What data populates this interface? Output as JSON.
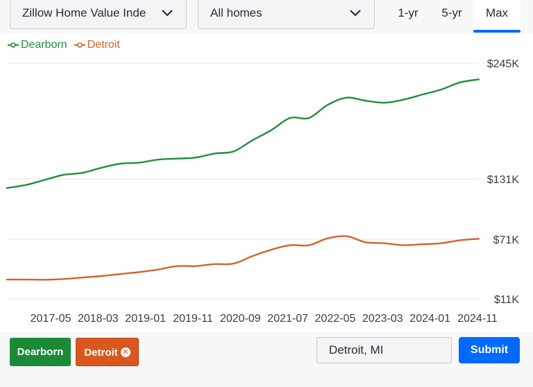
{
  "controls": {
    "metric_label": "Zillow Home Value Inde",
    "home_type_label": "All homes",
    "ranges": [
      "1-yr",
      "5-yr",
      "Max"
    ],
    "active_range": "Max"
  },
  "colors": {
    "dearborn": "#1e8f3a",
    "detroit": "#d5602a",
    "accent": "#006aff"
  },
  "chart_data": {
    "type": "line",
    "y_ticks": [
      "$245K",
      "$131K",
      "$71K",
      "$11K"
    ],
    "y_tick_values": [
      245000,
      131000,
      71000,
      11000
    ],
    "x_tick_labels": [
      "2017-05",
      "2018-03",
      "2019-01",
      "2019-11",
      "2020-09",
      "2021-07",
      "2022-05",
      "2023-03",
      "2024-01",
      "2024-11"
    ],
    "series": [
      {
        "name": "Dearborn",
        "values": [
          [
            "2016-09",
            122000
          ],
          [
            "2017-01",
            125000
          ],
          [
            "2017-05",
            130000
          ],
          [
            "2017-09",
            135000
          ],
          [
            "2018-01",
            137000
          ],
          [
            "2018-05",
            142000
          ],
          [
            "2018-09",
            146000
          ],
          [
            "2019-01",
            147000
          ],
          [
            "2019-05",
            150000
          ],
          [
            "2019-09",
            151000
          ],
          [
            "2020-01",
            152000
          ],
          [
            "2020-05",
            156000
          ],
          [
            "2020-09",
            158000
          ],
          [
            "2021-01",
            169000
          ],
          [
            "2021-05",
            179000
          ],
          [
            "2021-09",
            191000
          ],
          [
            "2022-01",
            191000
          ],
          [
            "2022-05",
            204000
          ],
          [
            "2022-09",
            211000
          ],
          [
            "2023-01",
            208000
          ],
          [
            "2023-05",
            206000
          ],
          [
            "2023-09",
            209000
          ],
          [
            "2024-01",
            214000
          ],
          [
            "2024-05",
            219000
          ],
          [
            "2024-09",
            226000
          ],
          [
            "2025-01",
            229000
          ]
        ]
      },
      {
        "name": "Detroit",
        "values": [
          [
            "2016-09",
            30500
          ],
          [
            "2017-01",
            30500
          ],
          [
            "2017-05",
            30300
          ],
          [
            "2017-09",
            31000
          ],
          [
            "2018-01",
            32500
          ],
          [
            "2018-05",
            34000
          ],
          [
            "2018-09",
            36000
          ],
          [
            "2019-01",
            38000
          ],
          [
            "2019-05",
            40500
          ],
          [
            "2019-09",
            44000
          ],
          [
            "2020-01",
            44000
          ],
          [
            "2020-05",
            46000
          ],
          [
            "2020-09",
            46500
          ],
          [
            "2021-01",
            54000
          ],
          [
            "2021-05",
            60500
          ],
          [
            "2021-09",
            65000
          ],
          [
            "2022-01",
            65000
          ],
          [
            "2022-05",
            72000
          ],
          [
            "2022-09",
            74000
          ],
          [
            "2023-01",
            68000
          ],
          [
            "2023-05",
            67000
          ],
          [
            "2023-09",
            65000
          ],
          [
            "2024-01",
            66000
          ],
          [
            "2024-05",
            67000
          ],
          [
            "2024-09",
            70000
          ],
          [
            "2025-01",
            71500
          ]
        ]
      }
    ]
  },
  "legend": {
    "items": [
      "Dearborn",
      "Detroit"
    ]
  },
  "cities": {
    "dearborn_label": "Dearborn",
    "detroit_label": "Detroit"
  },
  "search": {
    "value": "Detroit, MI"
  },
  "submit_label": "Submit"
}
